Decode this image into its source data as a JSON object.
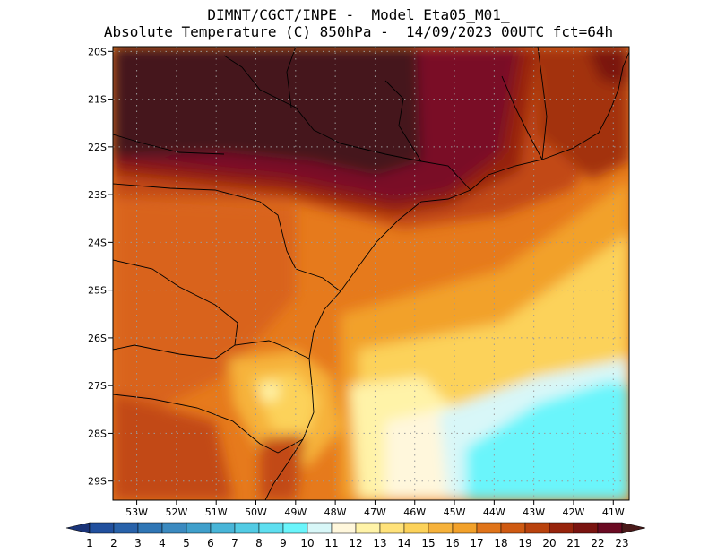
{
  "header": {
    "line1": "DIMNT/CGCT/INPE -  Model Eta05_M01_",
    "line2": "Absolute Temperature (C) 850hPa -  14/09/2023 00UTC fct=64h"
  },
  "map": {
    "lat_labels": [
      "20S",
      "21S",
      "22S",
      "23S",
      "24S",
      "25S",
      "26S",
      "27S",
      "28S",
      "29S"
    ],
    "lon_labels": [
      "53W",
      "52W",
      "51W",
      "50W",
      "49W",
      "48W",
      "47W",
      "46W",
      "45W",
      "44W",
      "43W",
      "42W",
      "41W"
    ],
    "lat_range": [
      -29.4,
      -19.9
    ],
    "lon_range": [
      -53.6,
      -40.6
    ],
    "grid": "dotted"
  },
  "colorbar": {
    "labels": [
      "1",
      "2",
      "3",
      "4",
      "5",
      "6",
      "7",
      "8",
      "9",
      "10",
      "11",
      "12",
      "13",
      "14",
      "15",
      "16",
      "17",
      "18",
      "19",
      "20",
      "21",
      "22",
      "23"
    ],
    "colors": [
      "#1e3f8c",
      "#21509e",
      "#2862aa",
      "#2f76b5",
      "#3b8ac0",
      "#3f9fcb",
      "#48b5d8",
      "#52cbe4",
      "#5edff0",
      "#6af5fb",
      "#d8f7f8",
      "#fff7dc",
      "#fff3a8",
      "#ffe27a",
      "#fcd25a",
      "#f6b23b",
      "#f2a12a",
      "#e0741a",
      "#cf5a12",
      "#b9420d",
      "#97240c",
      "#7a1410",
      "#6a0a22"
    ],
    "left_arrow": "#1a3478",
    "right_arrow": "#4a1a1a"
  }
}
